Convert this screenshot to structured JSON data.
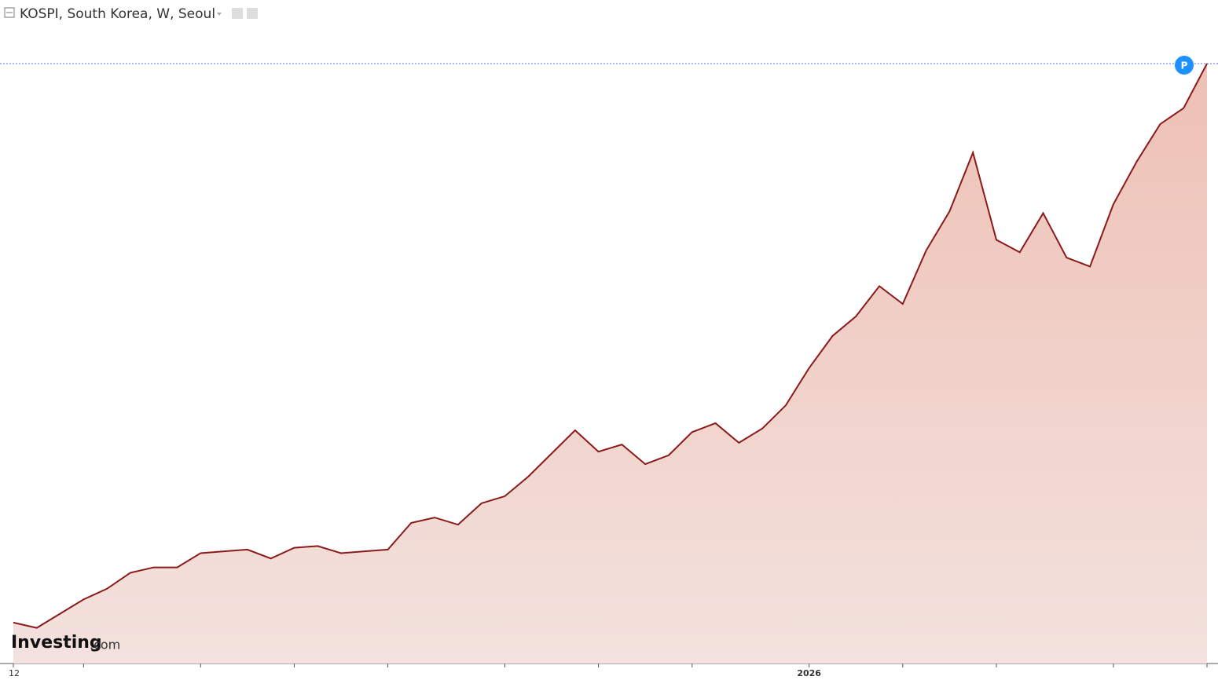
{
  "chart_data": {
    "type": "area",
    "title": "KOSPI, South Korea, W, Seoul",
    "logo": "Investing",
    "logo_suffix": ".com",
    "badge": "P",
    "categories": [
      "12",
      null,
      null,
      null,
      null,
      null,
      null,
      null,
      null,
      null,
      null,
      null,
      null,
      null,
      null,
      null,
      null,
      null,
      null,
      null,
      null,
      null,
      null,
      null,
      null,
      null,
      null,
      null,
      null,
      null,
      null,
      null,
      null,
      null,
      "2026",
      null,
      null,
      null,
      null,
      null,
      null,
      null,
      null,
      null,
      null,
      null,
      null,
      null,
      null,
      null,
      null,
      null
    ],
    "series": [
      {
        "color": "#8b1a1a",
        "values": [
          2600,
          2570,
          2650,
          2730,
          2790,
          2880,
          2910,
          2910,
          2990,
          3000,
          3010,
          2960,
          3020,
          3030,
          2990,
          3000,
          3010,
          3160,
          3190,
          3150,
          3270,
          3310,
          3420,
          3550,
          3680,
          3560,
          3600,
          3490,
          3540,
          3670,
          3720,
          3610,
          3690,
          3820,
          4030,
          4210,
          4320,
          4490,
          4390,
          4690,
          4910,
          5240,
          4750,
          4680,
          4900,
          4650,
          4600,
          4950,
          5190,
          5400,
          5490,
          5740
        ]
      }
    ],
    "ylim": [
      2370,
      5740
    ]
  }
}
